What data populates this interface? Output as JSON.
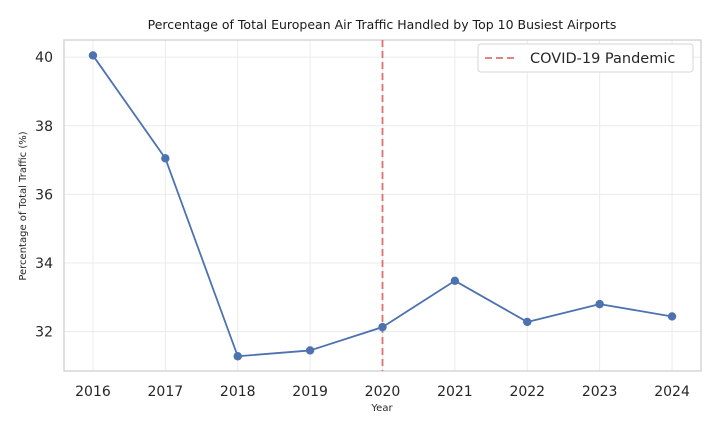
{
  "chart_data": {
    "type": "line",
    "title": "Percentage of Total European Air Traffic Handled by Top 10 Busiest Airports",
    "xlabel": "Year",
    "ylabel": "Percentage of Total Traffic (%)",
    "x": [
      2016,
      2017,
      2018,
      2019,
      2020,
      2021,
      2022,
      2023,
      2024
    ],
    "series": [
      {
        "values": [
          40.05,
          37.05,
          31.28,
          31.45,
          32.13,
          33.48,
          32.28,
          32.8,
          32.44
        ]
      }
    ],
    "yticks": [
      32,
      34,
      36,
      38,
      40
    ],
    "ylim": [
      30.85,
      40.5
    ],
    "xlim": [
      2015.6,
      2024.4
    ],
    "grid": true,
    "annotations": [
      {
        "type": "vline",
        "x": 2020,
        "label": "COVID-19 Pandemic",
        "style": "dashed"
      }
    ],
    "legend": {
      "placement": "top-right",
      "entries": [
        "COVID-19 Pandemic"
      ]
    },
    "colors": {
      "line": "#4c72b0",
      "vline": "#e07070",
      "grid": "#ebebeb",
      "frame": "#cccccc"
    }
  }
}
